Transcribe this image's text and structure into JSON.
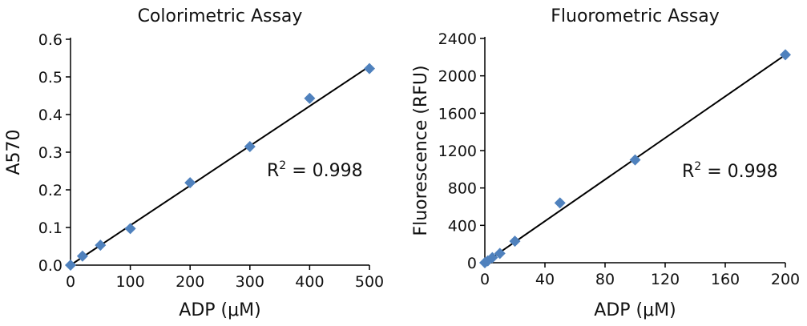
{
  "chart_data": [
    {
      "type": "scatter",
      "title": "Colorimetric Assay",
      "xlabel": "ADP (μM)",
      "ylabel": "A570",
      "xlim": [
        0,
        500
      ],
      "ylim": [
        0,
        0.6
      ],
      "xticks": [
        "0",
        "100",
        "200",
        "300",
        "400",
        "500"
      ],
      "yticks": [
        "0.0",
        "0.1",
        "0.2",
        "0.3",
        "0.4",
        "0.5",
        "0.6"
      ],
      "x": [
        0,
        20,
        50,
        100,
        200,
        300,
        400,
        500
      ],
      "y": [
        0.0,
        0.024,
        0.053,
        0.097,
        0.219,
        0.315,
        0.443,
        0.522
      ],
      "fit_line": {
        "x": [
          0,
          500
        ],
        "y": [
          0.0,
          0.528
        ]
      },
      "annotation": {
        "base": "R",
        "sup": "2",
        "text": " = 0.998"
      },
      "grid": false,
      "marker_color": "#4f81bd"
    },
    {
      "type": "scatter",
      "title": "Fluorometric Assay",
      "xlabel": "ADP (μM)",
      "ylabel": "Fluorescence (RFU)",
      "xlim": [
        0,
        200
      ],
      "ylim": [
        0,
        2400
      ],
      "xticks": [
        "0",
        "40",
        "80",
        "120",
        "160",
        "200"
      ],
      "yticks": [
        "0",
        "400",
        "800",
        "1200",
        "1600",
        "2000",
        "2400"
      ],
      "x": [
        0,
        2,
        5,
        10,
        20,
        50,
        100,
        200
      ],
      "y": [
        0,
        20,
        55,
        100,
        230,
        640,
        1100,
        2225
      ],
      "fit_line": {
        "x": [
          0,
          200
        ],
        "y": [
          0,
          2225
        ]
      },
      "annotation": {
        "base": "R",
        "sup": "2",
        "text": " = 0.998"
      },
      "grid": false,
      "marker_color": "#4f81bd"
    }
  ]
}
